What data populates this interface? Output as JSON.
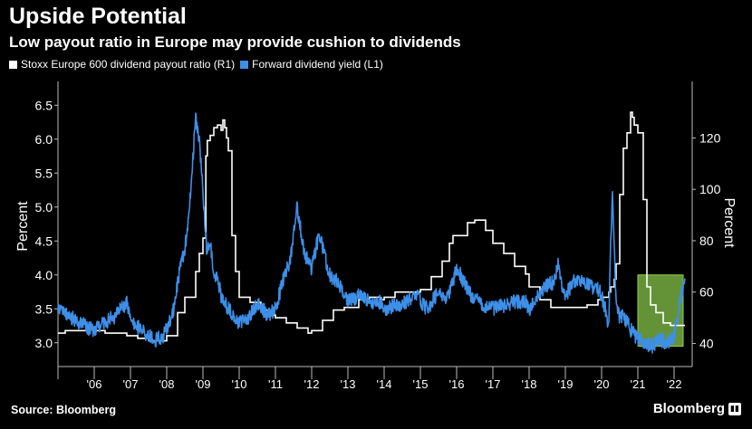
{
  "header": {
    "title": "Upside Potential",
    "subtitle": "Low payout ratio in Europe may provide cushion to dividends"
  },
  "footer": {
    "source": "Source: Bloomberg",
    "brand": "Bloomberg"
  },
  "colors": {
    "background": "#000000",
    "payout": "#ffffff",
    "yield": "#3d8fe8",
    "highlight": "#8fd14f"
  },
  "chart_data": {
    "type": "line",
    "left_axis": {
      "label": "Percent",
      "ticks": [
        "3.0",
        "3.5",
        "4.0",
        "4.5",
        "5.0",
        "5.5",
        "6.0",
        "6.5"
      ],
      "range": [
        2.65,
        6.85
      ]
    },
    "right_axis": {
      "label": "Percent",
      "ticks": [
        "40",
        "60",
        "80",
        "100",
        "120"
      ],
      "range": [
        31,
        142
      ]
    },
    "x_axis": {
      "ticks": [
        "'06",
        "'07",
        "'08",
        "'09",
        "'10",
        "'11",
        "'12",
        "'13",
        "'14",
        "'15",
        "'16",
        "'17",
        "'18",
        "'19",
        "'20",
        "'21",
        "'22"
      ],
      "range": [
        2005.0,
        2022.5
      ]
    },
    "legend": {
      "position": "top-left"
    },
    "grid": false,
    "series": [
      {
        "name": "Stoxx Europe 600 dividend payout ratio (R1)",
        "axis": "right",
        "x": [
          2005.0,
          2005.2,
          2005.5,
          2005.8,
          2006.0,
          2006.3,
          2006.6,
          2006.9,
          2007.0,
          2007.2,
          2007.5,
          2007.8,
          2008.0,
          2008.3,
          2008.5,
          2008.8,
          2008.9,
          2009.0,
          2009.08,
          2009.12,
          2009.2,
          2009.3,
          2009.4,
          2009.5,
          2009.55,
          2009.6,
          2009.65,
          2009.7,
          2009.8,
          2009.9,
          2010.0,
          2010.3,
          2010.6,
          2010.9,
          2011.0,
          2011.3,
          2011.6,
          2011.9,
          2012.0,
          2012.3,
          2012.6,
          2012.9,
          2013.0,
          2013.3,
          2013.6,
          2013.9,
          2014.0,
          2014.3,
          2014.6,
          2014.9,
          2015.0,
          2015.3,
          2015.6,
          2015.8,
          2015.9,
          2016.0,
          2016.3,
          2016.5,
          2016.8,
          2017.0,
          2017.3,
          2017.6,
          2017.9,
          2018.0,
          2018.3,
          2018.6,
          2018.9,
          2019.0,
          2019.3,
          2019.6,
          2019.9,
          2020.0,
          2020.2,
          2020.25,
          2020.35,
          2020.4,
          2020.5,
          2020.6,
          2020.7,
          2020.8,
          2020.85,
          2020.9,
          2021.0,
          2021.15,
          2021.25,
          2021.35,
          2021.5,
          2021.7,
          2021.9,
          2022.0,
          2022.3
        ],
        "values": [
          44,
          45,
          45,
          46,
          45,
          44,
          44,
          43,
          43,
          42,
          41,
          41,
          43,
          52,
          58,
          68,
          75,
          81,
          113,
          119,
          121,
          124,
          125,
          123,
          127,
          124,
          120,
          115,
          82,
          68,
          58,
          56,
          53,
          51,
          50,
          48,
          46,
          44,
          45,
          49,
          53,
          54,
          54,
          57,
          58,
          57,
          58,
          60,
          60,
          60,
          61,
          66,
          72,
          79,
          82,
          82,
          87,
          88,
          84,
          79,
          75,
          70,
          67,
          62,
          57,
          54,
          54,
          54,
          54,
          55,
          57,
          58,
          60,
          62,
          65,
          71,
          98,
          116,
          122,
          130,
          128,
          125,
          122,
          96,
          62,
          55,
          52,
          48,
          47,
          47,
          47
        ]
      },
      {
        "name": "Forward dividend yield (L1)",
        "axis": "left",
        "x": [
          2005.0,
          2005.3,
          2005.6,
          2005.9,
          2006.0,
          2006.3,
          2006.6,
          2006.9,
          2007.0,
          2007.3,
          2007.5,
          2007.7,
          2007.9,
          2008.0,
          2008.2,
          2008.3,
          2008.5,
          2008.6,
          2008.8,
          2008.9,
          2009.0,
          2009.05,
          2009.1,
          2009.2,
          2009.3,
          2009.4,
          2009.5,
          2009.7,
          2009.9,
          2010.0,
          2010.3,
          2010.5,
          2010.8,
          2011.0,
          2011.2,
          2011.4,
          2011.6,
          2011.8,
          2012.0,
          2012.2,
          2012.5,
          2012.7,
          2013.0,
          2013.3,
          2013.6,
          2013.9,
          2014.0,
          2014.3,
          2014.6,
          2014.9,
          2015.0,
          2015.2,
          2015.5,
          2015.7,
          2015.9,
          2016.0,
          2016.2,
          2016.4,
          2016.6,
          2016.9,
          2017.0,
          2017.3,
          2017.6,
          2017.9,
          2018.0,
          2018.2,
          2018.5,
          2018.7,
          2018.8,
          2018.9,
          2019.0,
          2019.3,
          2019.6,
          2019.9,
          2020.0,
          2020.1,
          2020.15,
          2020.2,
          2020.25,
          2020.3,
          2020.4,
          2020.5,
          2020.6,
          2020.8,
          2021.0,
          2021.2,
          2021.4,
          2021.6,
          2021.8,
          2022.0,
          2022.1,
          2022.2,
          2022.3
        ],
        "values": [
          3.55,
          3.4,
          3.3,
          3.2,
          3.2,
          3.3,
          3.4,
          3.6,
          3.3,
          3.2,
          3.1,
          3.05,
          3.1,
          3.2,
          3.5,
          3.9,
          4.4,
          4.8,
          6.3,
          6.0,
          5.2,
          4.8,
          4.4,
          4.5,
          4.0,
          3.95,
          3.7,
          3.5,
          3.35,
          3.3,
          3.4,
          3.6,
          3.4,
          3.5,
          3.9,
          4.2,
          5.0,
          4.3,
          4.1,
          4.6,
          4.0,
          3.9,
          3.6,
          3.7,
          3.6,
          3.6,
          3.5,
          3.55,
          3.6,
          3.7,
          3.6,
          3.5,
          3.75,
          3.6,
          3.9,
          4.1,
          3.9,
          3.7,
          3.6,
          3.5,
          3.5,
          3.55,
          3.6,
          3.6,
          3.5,
          3.65,
          3.85,
          3.9,
          4.2,
          3.85,
          3.7,
          3.95,
          3.85,
          3.8,
          3.7,
          3.5,
          3.3,
          3.4,
          4.5,
          5.15,
          3.6,
          3.35,
          3.4,
          3.2,
          3.05,
          3.0,
          2.95,
          3.05,
          3.0,
          3.1,
          3.4,
          3.7,
          3.95
        ]
      }
    ]
  }
}
